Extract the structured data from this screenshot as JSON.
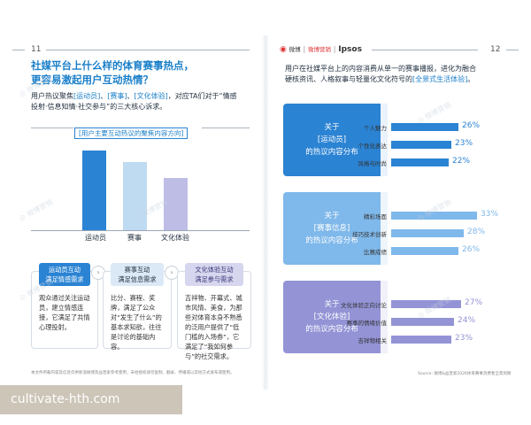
{
  "left_page": {
    "page_number": "11",
    "title_line1": "社媒平台上什么样的体育赛事热点，",
    "title_line2": "更容易激起用户互动热情？",
    "intro_p1": "用户热议聚焦",
    "intro_hl1": "[运动员]",
    "intro_sep1": "、",
    "intro_hl2": "[赛事]",
    "intro_sep2": "、",
    "intro_hl3": "[文化体验]",
    "intro_p2": "，对应TA们对于“情感",
    "intro_line2": "投射·信息知情·社交参与”的三大核心诉求。",
    "chart_title": "[用户主要互动热议的聚焦内容方向]",
    "cards": [
      {
        "head1": "运动员互动",
        "head2": "满足情感需求",
        "body": "观众通过关注运动员，建立情感连接，它满足了共情心理投射。"
      },
      {
        "head1": "赛事互动",
        "head2": "满足信息需求",
        "body": "比分、赛程、奖牌，满足了公众对“发生了什么”的基本求知欲，往往是讨论的基础内容。"
      },
      {
        "head1": "文化体验互动",
        "head2": "满足参与需求",
        "body": "吉祥物、开幕式、城市风情、美食，为那些对体育本身不熟悉的泛用户提供了“低门槛的入场券”，它满足了“我如何参与”的社交需求。"
      }
    ],
    "footnote": "本文件所载内容及信息仅供新浪微博及益普索参考使用，未经授权请勿复制、翻录、传播或以其他方式发布或使用。"
  },
  "chart_data": {
    "type": "bar",
    "categories": [
      "运动员",
      "赛事",
      "文化体验"
    ],
    "values": [
      100,
      86,
      66
    ],
    "title": "[用户主要互动热议的聚焦内容方向]",
    "xlabel": "",
    "ylabel": "",
    "ylim": [
      0,
      100
    ],
    "colors": [
      "#2b83d3",
      "#bfdbf2",
      "#bdbde6"
    ]
  },
  "right_page": {
    "page_number": "12",
    "brand_weibo": "微博",
    "brand_mid": "微博营销",
    "brand_ipsos": "Ipsos",
    "intro_line1": "用户在社媒平台上的内容消费从单一的赛事播报，进化为融合",
    "intro_line2_a": "硬核资讯、人格叙事与轻量化文化符号的",
    "intro_line2_hl": "[全景式生活体验]",
    "intro_line2_b": "。",
    "panels": [
      {
        "label1": "关于",
        "label2": "[运动员]",
        "label3": "的热议内容分布",
        "color": "#2b83d3",
        "bg": "#eaf3fb",
        "rows": [
          {
            "label": "个人魅力",
            "value": 26,
            "display": "26%"
          },
          {
            "label": "个性化表达",
            "value": 23,
            "display": "23%"
          },
          {
            "label": "风格与时尚",
            "value": 22,
            "display": "22%"
          }
        ]
      },
      {
        "label1": "关于",
        "label2": "[赛事信息]",
        "label3": "的热议内容分布",
        "color": "#7fb8ea",
        "bg": "#eef6fc",
        "rows": [
          {
            "label": "精彩场面",
            "value": 33,
            "display": "33%"
          },
          {
            "label": "技巧技术创新",
            "value": 28,
            "display": "28%"
          },
          {
            "label": "比赛成绩",
            "value": 26,
            "display": "26%"
          }
        ]
      },
      {
        "label1": "关于",
        "label2": "[文化体验]",
        "label3": "的热议内容分布",
        "color": "#9393d6",
        "bg": "#f1f1fa",
        "rows": [
          {
            "label": "文化体验正向讨论",
            "value": 27,
            "display": "27%"
          },
          {
            "label": "赛事的情绪价值",
            "value": 24,
            "display": "24%"
          },
          {
            "label": "吉祥物相关",
            "value": 23,
            "display": "23%"
          }
        ]
      }
    ],
    "source": "Source: 微博&益普索2026体育赛事消费者全景洞察"
  },
  "overlay_text": "cultivate-hth.com",
  "colors": {
    "accent": "#1a7fc9",
    "blue_bar": "#2b83d3",
    "light_blue": "#bfdbf2",
    "lavender": "#bdbde6"
  }
}
